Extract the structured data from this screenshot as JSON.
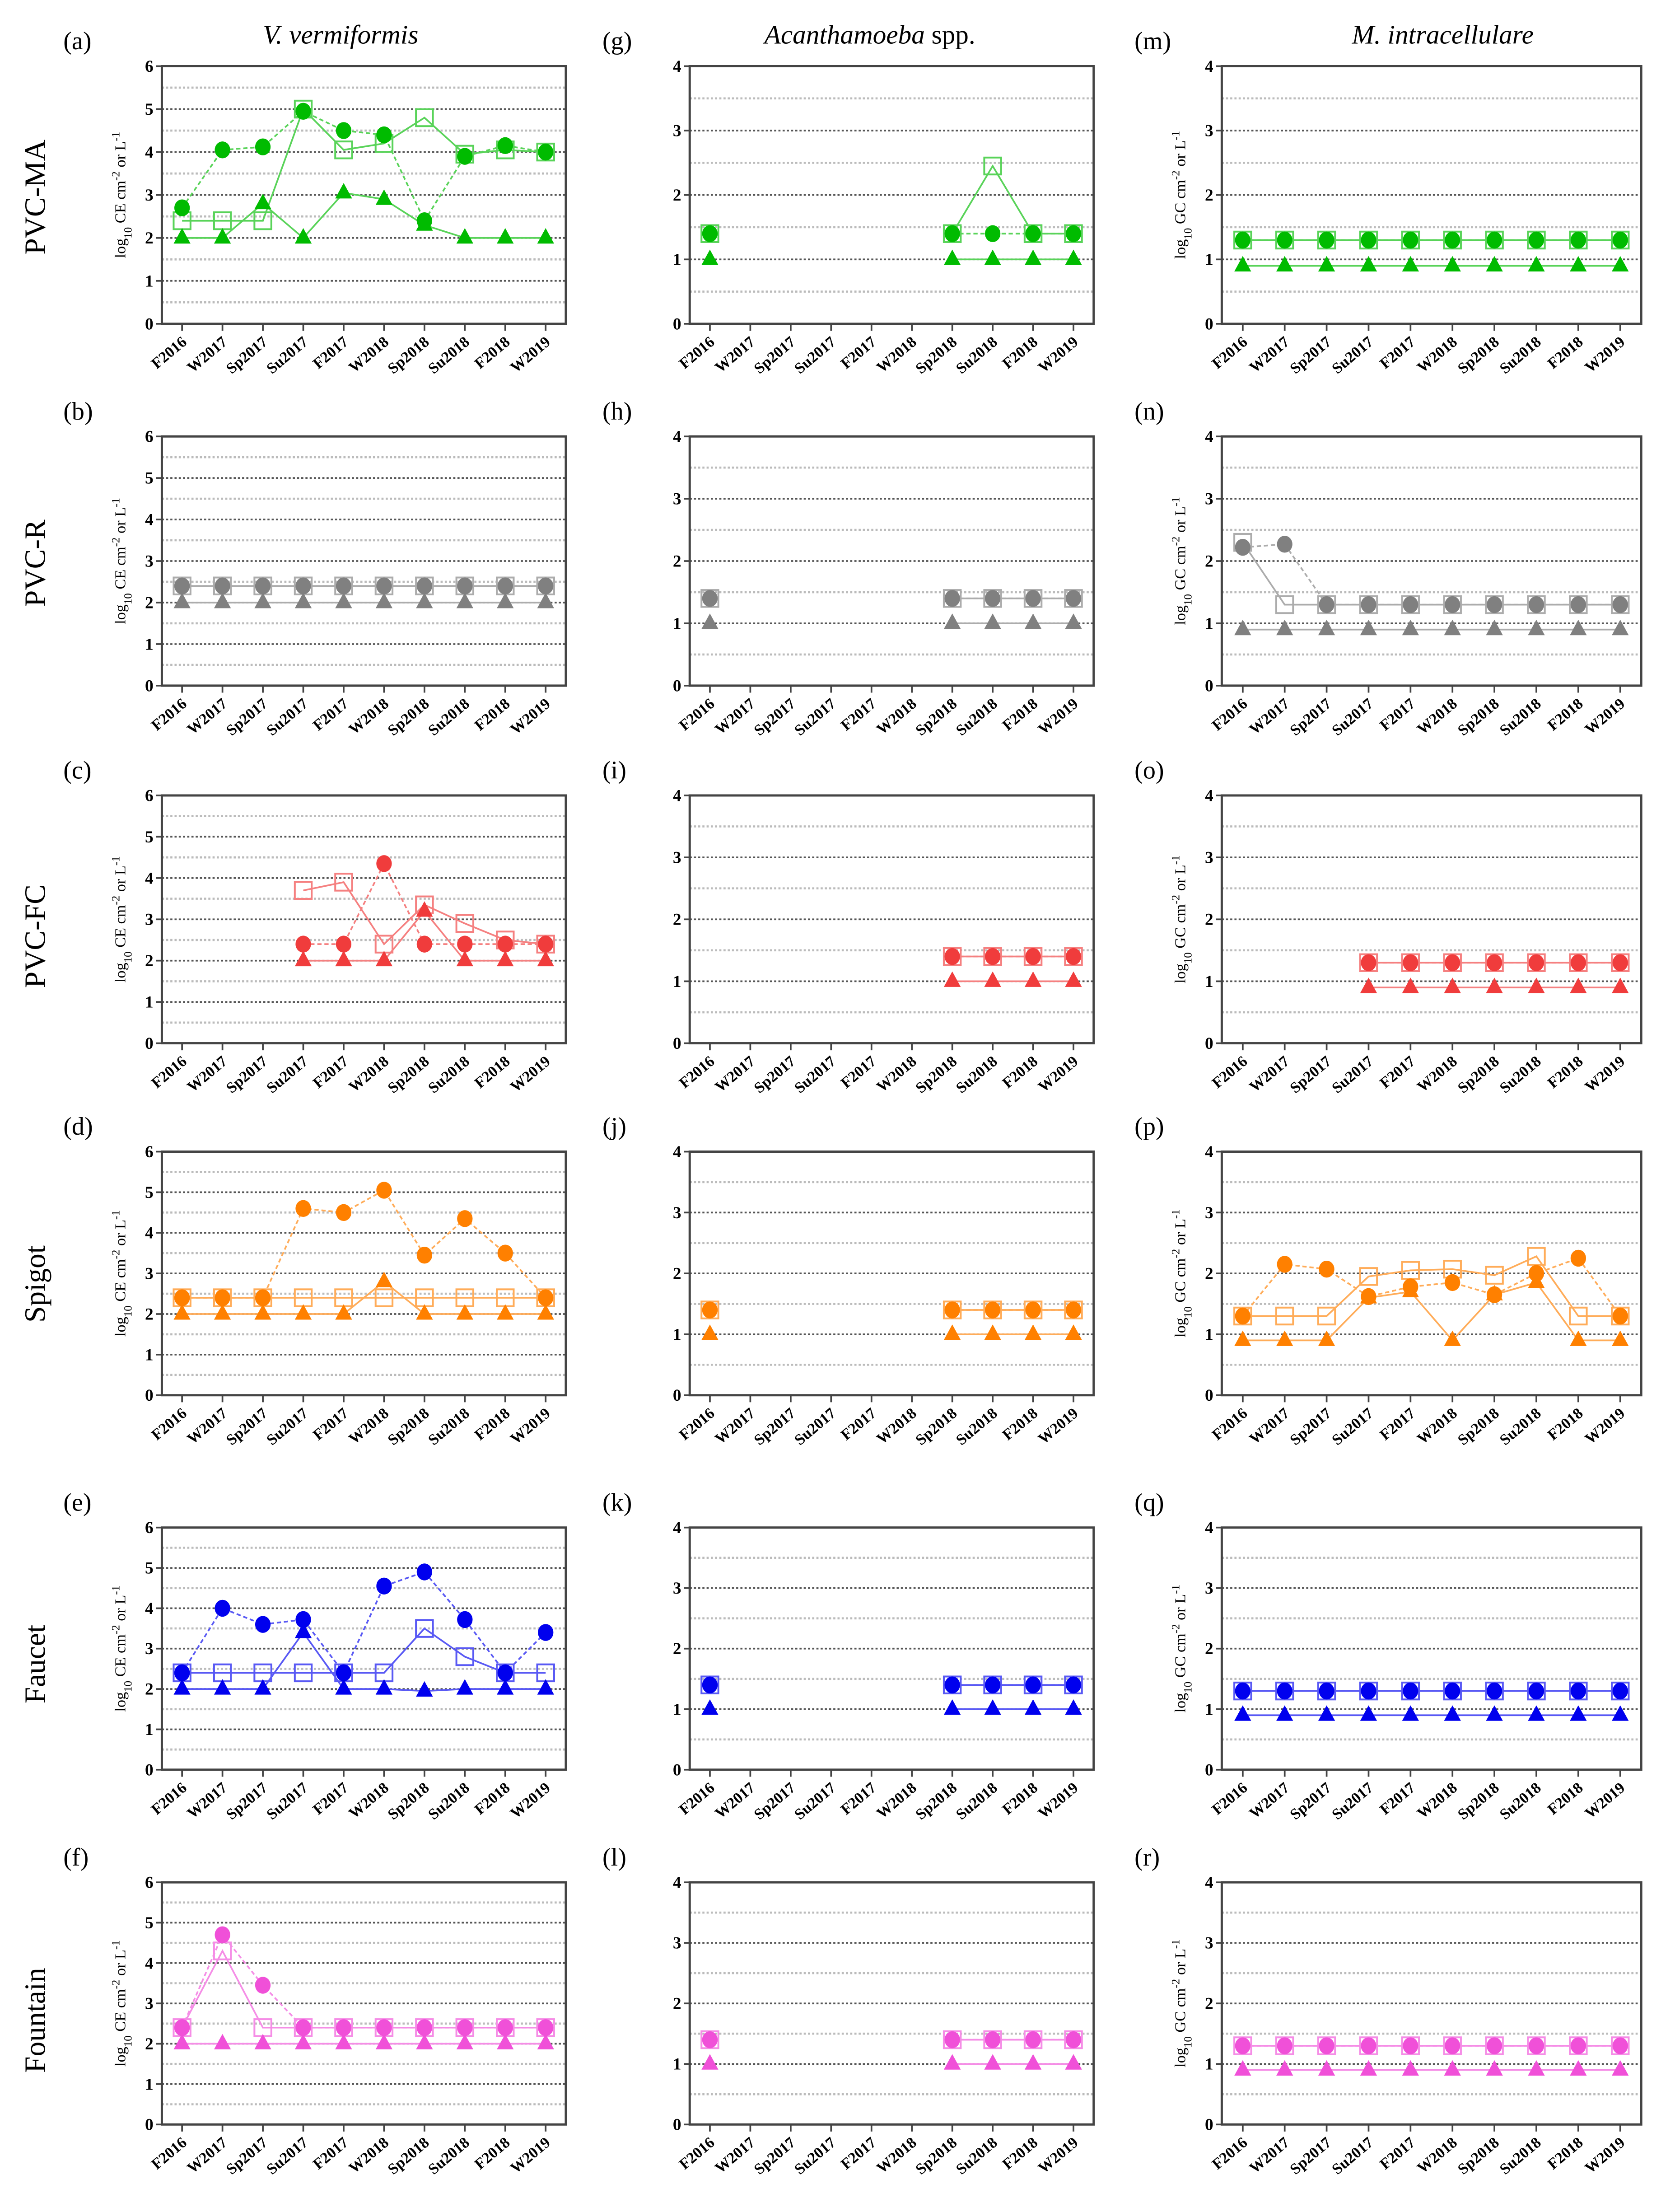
{
  "column_titles": [
    {
      "italic": "V. vermiformis",
      "suffix": ""
    },
    {
      "italic": "Acanthamoeba",
      "suffix": " spp."
    },
    {
      "italic": "M. intracellulare",
      "suffix": ""
    }
  ],
  "row_labels": [
    "PVC-MA",
    "PVC-R",
    "PVC-FC",
    "Spigot",
    "Faucet",
    "Fountain"
  ],
  "chart_data": {
    "type": "line",
    "categories": [
      "F2016",
      "W2017",
      "Sp2017",
      "Su2017",
      "F2017",
      "W2018",
      "Sp2018",
      "Su2018",
      "F2018",
      "W2019"
    ],
    "ylabels": {
      "CE": {
        "a": "log",
        "sub": "10",
        "b": " CE cm",
        "sup": "-2",
        "c": " or L",
        "sup2": "-1"
      },
      "GC": {
        "a": "log",
        "sub": "10",
        "b": " GC cm",
        "sup": "-2",
        "c": " or L",
        "sup2": "-1"
      }
    },
    "series_styles": {
      "circle": "filled circle, dashed line",
      "square": "open square, solid line",
      "triangle": "filled triangle, solid line"
    },
    "panels": [
      {
        "letter": "(a)",
        "col": 0,
        "row": 0,
        "color": "#00bb00",
        "ylabel": "CE",
        "ylim": [
          0,
          6
        ],
        "circle": [
          2.7,
          4.05,
          4.12,
          4.95,
          4.5,
          4.4,
          2.4,
          3.9,
          4.15,
          4.0
        ],
        "square": [
          2.4,
          2.4,
          2.4,
          5.0,
          4.05,
          4.2,
          4.8,
          3.95,
          4.05,
          4.0
        ],
        "triangle": [
          2,
          2,
          2.8,
          2,
          3.05,
          2.9,
          2.3,
          2,
          2,
          2
        ]
      },
      {
        "letter": "(b)",
        "col": 0,
        "row": 1,
        "color": "#808080",
        "ylabel": "CE",
        "ylim": [
          0,
          6
        ],
        "circle": [
          2.4,
          2.4,
          2.4,
          2.4,
          2.4,
          2.4,
          2.4,
          2.4,
          2.4,
          2.4
        ],
        "square": [
          2.4,
          2.4,
          2.4,
          2.4,
          2.4,
          2.4,
          2.4,
          2.4,
          2.4,
          2.4
        ],
        "triangle": [
          2,
          2,
          2,
          2,
          2,
          2,
          2,
          2,
          2,
          2
        ]
      },
      {
        "letter": "(c)",
        "col": 0,
        "row": 2,
        "color": "#f03c3c",
        "ylabel": "CE",
        "ylim": [
          0,
          6
        ],
        "circle": [
          null,
          null,
          null,
          2.4,
          2.4,
          4.35,
          2.4,
          2.4,
          2.4,
          2.4
        ],
        "square": [
          null,
          null,
          null,
          3.7,
          3.9,
          2.4,
          3.35,
          2.9,
          2.5,
          2.4
        ],
        "triangle": [
          null,
          null,
          null,
          2,
          2,
          2,
          3.2,
          2,
          2,
          2
        ]
      },
      {
        "letter": "(d)",
        "col": 0,
        "row": 3,
        "color": "#ff8000",
        "ylabel": "CE",
        "ylim": [
          0,
          6
        ],
        "circle": [
          2.4,
          2.4,
          2.4,
          4.6,
          4.5,
          5.05,
          3.45,
          4.35,
          3.5,
          2.4
        ],
        "square": [
          2.4,
          2.4,
          2.4,
          2.4,
          2.4,
          2.4,
          2.4,
          2.4,
          2.4,
          2.4
        ],
        "triangle": [
          2,
          2,
          2,
          2,
          2,
          2.8,
          2,
          2,
          2,
          2
        ]
      },
      {
        "letter": "(e)",
        "col": 0,
        "row": 4,
        "color": "#0000ee",
        "ylabel": "CE",
        "ylim": [
          0,
          6
        ],
        "circle": [
          2.4,
          4.0,
          3.6,
          3.72,
          2.4,
          4.55,
          4.9,
          3.72,
          2.4,
          3.4
        ],
        "square": [
          2.4,
          2.4,
          2.4,
          2.4,
          2.4,
          2.4,
          3.5,
          2.8,
          2.4,
          2.4
        ],
        "triangle": [
          2,
          2,
          2,
          3.4,
          2,
          2,
          1.95,
          2,
          2,
          2
        ]
      },
      {
        "letter": "(f)",
        "col": 0,
        "row": 5,
        "color": "#f050d8",
        "ylabel": "CE",
        "ylim": [
          0,
          6
        ],
        "circle": [
          2.4,
          4.7,
          3.45,
          2.4,
          2.4,
          2.4,
          2.4,
          2.4,
          2.4,
          2.4
        ],
        "square": [
          2.4,
          4.3,
          2.4,
          2.4,
          2.4,
          2.4,
          2.4,
          2.4,
          2.4,
          2.4
        ],
        "triangle": [
          2,
          2,
          2,
          2,
          2,
          2,
          2,
          2,
          2,
          2
        ]
      },
      {
        "letter": "(g)",
        "col": 1,
        "row": 0,
        "color": "#00bb00",
        "ylabel": "",
        "ylim": [
          0,
          4
        ],
        "circle": [
          1.4,
          null,
          null,
          null,
          null,
          null,
          1.4,
          1.4,
          1.4,
          1.4
        ],
        "square": [
          1.4,
          null,
          null,
          null,
          null,
          null,
          1.4,
          2.45,
          1.4,
          1.4
        ],
        "triangle": [
          1,
          null,
          null,
          null,
          null,
          null,
          1,
          1,
          1,
          1
        ]
      },
      {
        "letter": "(h)",
        "col": 1,
        "row": 1,
        "color": "#808080",
        "ylabel": "",
        "ylim": [
          0,
          4
        ],
        "circle": [
          1.4,
          null,
          null,
          null,
          null,
          null,
          1.4,
          1.4,
          1.4,
          1.4
        ],
        "square": [
          1.4,
          null,
          null,
          null,
          null,
          null,
          1.4,
          1.4,
          1.4,
          1.4
        ],
        "triangle": [
          1,
          null,
          null,
          null,
          null,
          null,
          1,
          1,
          1,
          1
        ]
      },
      {
        "letter": "(i)",
        "col": 1,
        "row": 2,
        "color": "#f03c3c",
        "ylabel": "",
        "ylim": [
          0,
          4
        ],
        "circle": [
          null,
          null,
          null,
          null,
          null,
          null,
          1.4,
          1.4,
          1.4,
          1.4
        ],
        "square": [
          null,
          null,
          null,
          null,
          null,
          null,
          1.4,
          1.4,
          1.4,
          1.4
        ],
        "triangle": [
          null,
          null,
          null,
          null,
          null,
          null,
          1,
          1,
          1,
          1
        ]
      },
      {
        "letter": "(j)",
        "col": 1,
        "row": 3,
        "color": "#ff8000",
        "ylabel": "",
        "ylim": [
          0,
          4
        ],
        "circle": [
          1.4,
          null,
          null,
          null,
          null,
          null,
          1.4,
          1.4,
          1.4,
          1.4
        ],
        "square": [
          1.4,
          null,
          null,
          null,
          null,
          null,
          1.4,
          1.4,
          1.4,
          1.4
        ],
        "triangle": [
          1,
          null,
          null,
          null,
          null,
          null,
          1,
          1,
          1,
          1
        ]
      },
      {
        "letter": "(k)",
        "col": 1,
        "row": 4,
        "color": "#0000ee",
        "ylabel": "",
        "ylim": [
          0,
          4
        ],
        "circle": [
          1.4,
          null,
          null,
          null,
          null,
          null,
          1.4,
          1.4,
          1.4,
          1.4
        ],
        "square": [
          1.4,
          null,
          null,
          null,
          null,
          null,
          1.4,
          1.4,
          1.4,
          1.4
        ],
        "triangle": [
          1,
          null,
          null,
          null,
          null,
          null,
          1,
          1,
          1,
          1
        ]
      },
      {
        "letter": "(l)",
        "col": 1,
        "row": 5,
        "color": "#f050d8",
        "ylabel": "",
        "ylim": [
          0,
          4
        ],
        "circle": [
          1.4,
          null,
          null,
          null,
          null,
          null,
          1.4,
          1.4,
          1.4,
          1.4
        ],
        "square": [
          1.4,
          null,
          null,
          null,
          null,
          null,
          1.4,
          1.4,
          1.4,
          1.4
        ],
        "triangle": [
          1,
          null,
          null,
          null,
          null,
          null,
          1,
          1,
          1,
          1
        ]
      },
      {
        "letter": "(m)",
        "col": 2,
        "row": 0,
        "color": "#00bb00",
        "ylabel": "GC",
        "ylim": [
          0,
          4
        ],
        "circle": [
          1.3,
          1.3,
          1.3,
          1.3,
          1.3,
          1.3,
          1.3,
          1.3,
          1.3,
          1.3
        ],
        "square": [
          1.3,
          1.3,
          1.3,
          1.3,
          1.3,
          1.3,
          1.3,
          1.3,
          1.3,
          1.3
        ],
        "triangle": [
          0.9,
          0.9,
          0.9,
          0.9,
          0.9,
          0.9,
          0.9,
          0.9,
          0.9,
          0.9
        ]
      },
      {
        "letter": "(n)",
        "col": 2,
        "row": 1,
        "color": "#808080",
        "ylabel": "GC",
        "ylim": [
          0,
          4
        ],
        "circle": [
          2.22,
          2.27,
          1.3,
          1.3,
          1.3,
          1.3,
          1.3,
          1.3,
          1.3,
          1.3
        ],
        "square": [
          2.3,
          1.3,
          1.3,
          1.3,
          1.3,
          1.3,
          1.3,
          1.3,
          1.3,
          1.3
        ],
        "triangle": [
          0.9,
          0.9,
          0.9,
          0.9,
          0.9,
          0.9,
          0.9,
          0.9,
          0.9,
          0.9
        ]
      },
      {
        "letter": "(o)",
        "col": 2,
        "row": 2,
        "color": "#f03c3c",
        "ylabel": "GC",
        "ylim": [
          0,
          4
        ],
        "circle": [
          null,
          null,
          null,
          1.3,
          1.3,
          1.3,
          1.3,
          1.3,
          1.3,
          1.3
        ],
        "square": [
          null,
          null,
          null,
          1.3,
          1.3,
          1.3,
          1.3,
          1.3,
          1.3,
          1.3
        ],
        "triangle": [
          null,
          null,
          null,
          0.9,
          0.9,
          0.9,
          0.9,
          0.9,
          0.9,
          0.9
        ]
      },
      {
        "letter": "(p)",
        "col": 2,
        "row": 3,
        "color": "#ff8000",
        "ylabel": "GC",
        "ylim": [
          0,
          4
        ],
        "circle": [
          1.3,
          2.15,
          2.07,
          1.62,
          1.78,
          1.85,
          1.65,
          2.0,
          2.25,
          1.3
        ],
        "square": [
          1.3,
          1.3,
          1.3,
          1.95,
          2.05,
          2.07,
          1.97,
          2.28,
          1.3,
          1.3
        ],
        "triangle": [
          0.9,
          0.9,
          0.9,
          1.6,
          1.7,
          0.9,
          1.65,
          1.85,
          0.9,
          0.9
        ]
      },
      {
        "letter": "(q)",
        "col": 2,
        "row": 4,
        "color": "#0000ee",
        "ylabel": "GC",
        "ylim": [
          0,
          4
        ],
        "circle": [
          1.3,
          1.3,
          1.3,
          1.3,
          1.3,
          1.3,
          1.3,
          1.3,
          1.3,
          1.3
        ],
        "square": [
          1.3,
          1.3,
          1.3,
          1.3,
          1.3,
          1.3,
          1.3,
          1.3,
          1.3,
          1.3
        ],
        "triangle": [
          0.9,
          0.9,
          0.9,
          0.9,
          0.9,
          0.9,
          0.9,
          0.9,
          0.9,
          0.9
        ]
      },
      {
        "letter": "(r)",
        "col": 2,
        "row": 5,
        "color": "#f050d8",
        "ylabel": "GC",
        "ylim": [
          0,
          4
        ],
        "circle": [
          1.3,
          1.3,
          1.3,
          1.3,
          1.3,
          1.3,
          1.3,
          1.3,
          1.3,
          1.3
        ],
        "square": [
          1.3,
          1.3,
          1.3,
          1.3,
          1.3,
          1.3,
          1.3,
          1.3,
          1.3,
          1.3
        ],
        "triangle": [
          0.9,
          0.9,
          0.9,
          0.9,
          0.9,
          0.9,
          0.9,
          0.9,
          0.9,
          0.9
        ]
      }
    ]
  }
}
